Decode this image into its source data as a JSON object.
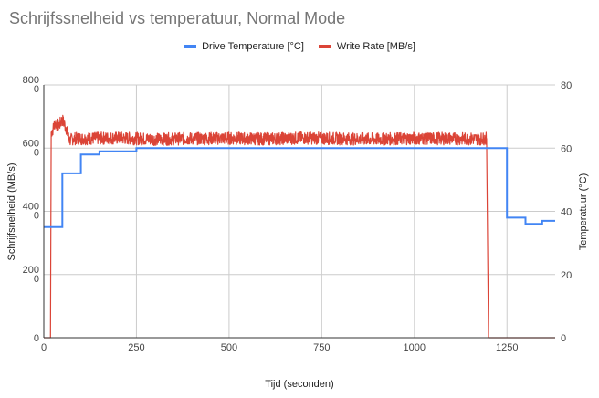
{
  "chart_data": {
    "type": "line",
    "title": "Schrijfssnelheid vs temperatuur, Normal Mode",
    "xlabel": "Tijd (seconden)",
    "ylabel_left": "Schrijfsnelheid (MB/s)",
    "ylabel_right": "Temperatuur (°C)",
    "xlim": [
      0,
      1380
    ],
    "ylim_left": [
      0,
      800
    ],
    "ylim_right": [
      0,
      80
    ],
    "x_ticks": [
      "0",
      "250",
      "500",
      "750",
      "1000",
      "1250"
    ],
    "x_tick_values": [
      0,
      250,
      500,
      750,
      1000,
      1250
    ],
    "y_left_ticks": [
      "0",
      "200\n0",
      "400\n0",
      "600\n0",
      "800\n0"
    ],
    "y_left_tick_values": [
      0,
      200,
      400,
      600,
      800
    ],
    "y_right_ticks": [
      "0",
      "20",
      "40",
      "60",
      "80"
    ],
    "y_right_tick_values": [
      0,
      20,
      40,
      60,
      80
    ],
    "grid": true,
    "legend_position": "top",
    "series": [
      {
        "name": "Drive Temperature [°C]",
        "axis": "right",
        "color": "#4285f4",
        "x": [
          0,
          50,
          50,
          100,
          100,
          150,
          150,
          250,
          250,
          1250,
          1250,
          1300,
          1300,
          1345,
          1345,
          1380
        ],
        "y": [
          35,
          35,
          52,
          52,
          58,
          58,
          59,
          59,
          60,
          60,
          38,
          38,
          36,
          36,
          37,
          37
        ]
      },
      {
        "name": "Write Rate [MB/s]",
        "axis": "left",
        "color": "#db4437",
        "x": [
          0,
          18,
          20,
          25,
          30,
          40,
          50,
          60,
          65,
          70,
          80,
          100,
          200,
          300,
          400,
          500,
          600,
          700,
          800,
          900,
          1000,
          1100,
          1150,
          1195,
          1200,
          1380
        ],
        "y": [
          0,
          0,
          650,
          660,
          680,
          670,
          690,
          665,
          640,
          625,
          630,
          630,
          632,
          628,
          630,
          631,
          629,
          632,
          630,
          628,
          631,
          630,
          629,
          630,
          0,
          0
        ],
        "noise_amplitude": 20
      }
    ]
  }
}
